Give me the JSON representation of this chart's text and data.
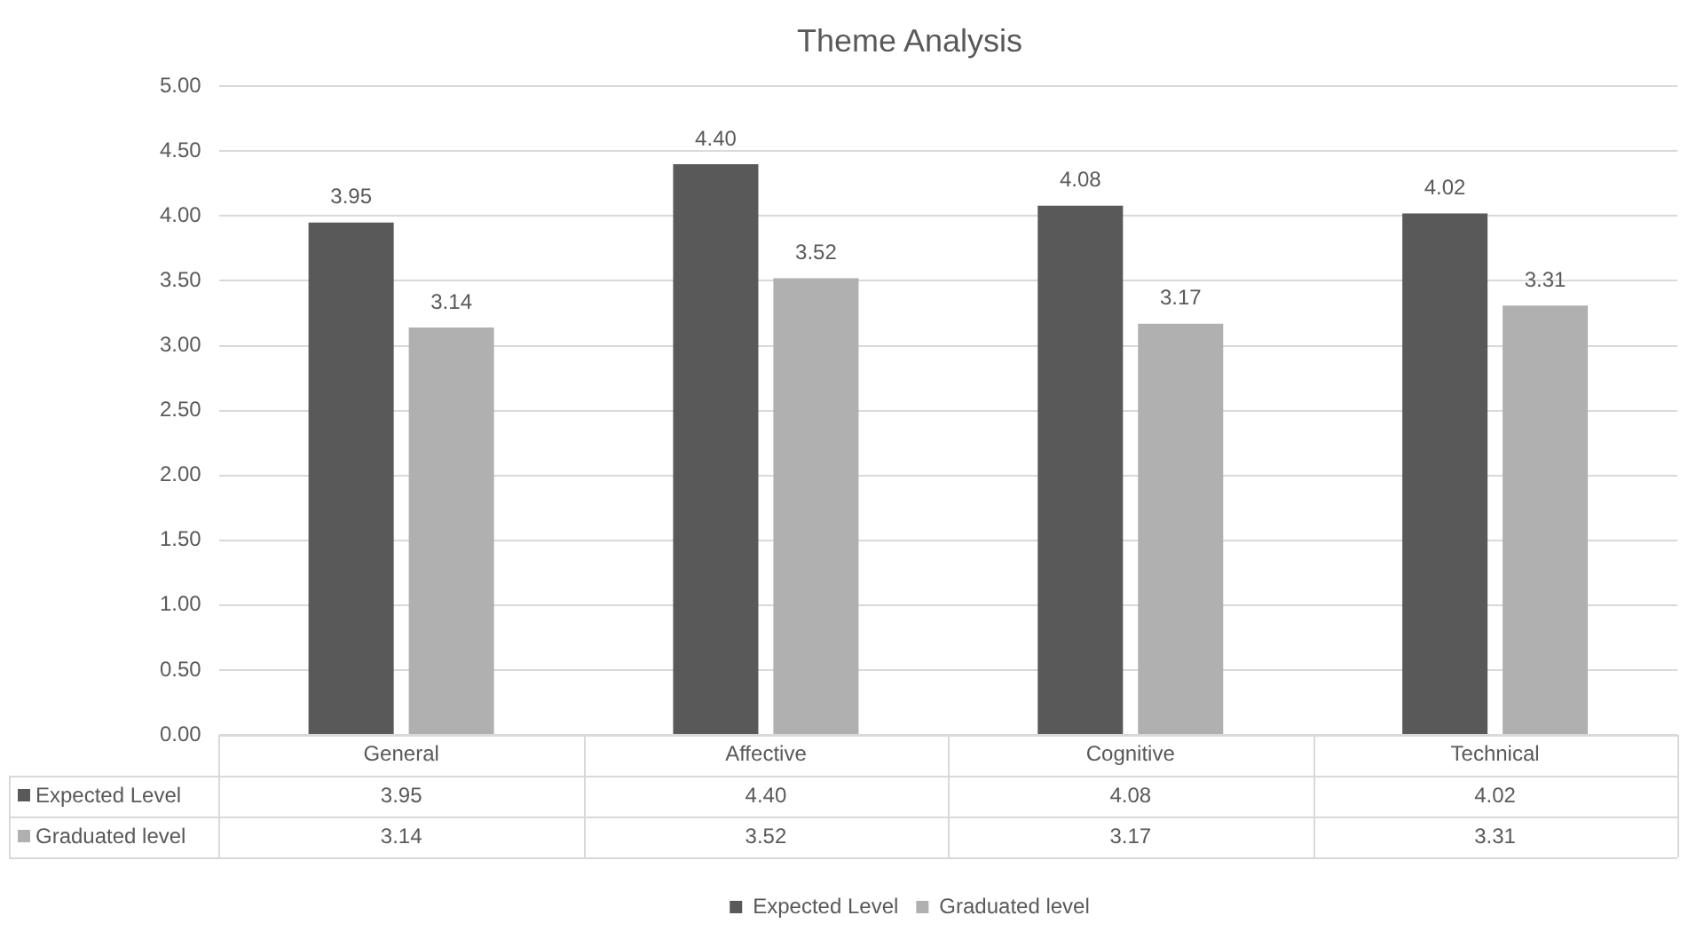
{
  "chart_data": {
    "type": "bar",
    "title": "Theme Analysis",
    "categories": [
      "General",
      "Affective",
      "Cognitive",
      "Technical"
    ],
    "series": [
      {
        "name": "Expected Level",
        "color": "#595959",
        "values": [
          3.95,
          4.4,
          4.08,
          4.02
        ],
        "value_labels": [
          "3.95",
          "4.40",
          "4.08",
          "4.02"
        ]
      },
      {
        "name": "Graduated level",
        "color": "#b0b0b0",
        "values": [
          3.14,
          3.52,
          3.17,
          3.31
        ],
        "value_labels": [
          "3.14",
          "3.52",
          "3.17",
          "3.31"
        ]
      }
    ],
    "ylim": [
      0,
      5
    ],
    "yticks": [
      {
        "value": 0,
        "label": "0.00"
      },
      {
        "value": 0.5,
        "label": "0.50"
      },
      {
        "value": 1,
        "label": "1.00"
      },
      {
        "value": 1.5,
        "label": "1.50"
      },
      {
        "value": 2,
        "label": "2.00"
      },
      {
        "value": 2.5,
        "label": "2.50"
      },
      {
        "value": 3,
        "label": "3.00"
      },
      {
        "value": 3.5,
        "label": "3.50"
      },
      {
        "value": 4,
        "label": "4.00"
      },
      {
        "value": 4.5,
        "label": "4.50"
      },
      {
        "value": 5,
        "label": "5.00"
      }
    ],
    "grid": "y",
    "legend": "bottom"
  }
}
